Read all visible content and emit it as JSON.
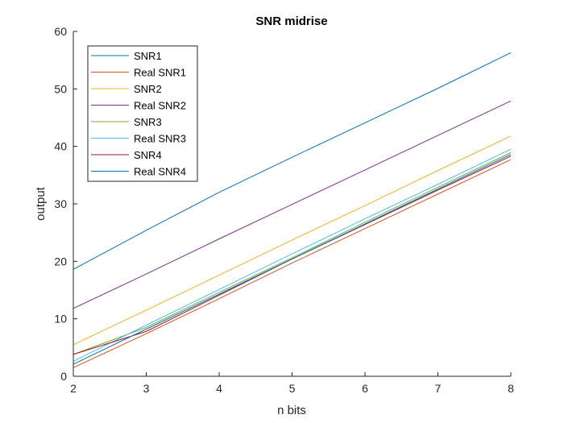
{
  "chart_data": {
    "type": "line",
    "title": "SNR midrise",
    "xlabel": "n bits",
    "ylabel": "output",
    "xlim": [
      2,
      8
    ],
    "ylim": [
      0,
      60
    ],
    "xticks": [
      "2",
      "3",
      "4",
      "5",
      "6",
      "7",
      "8"
    ],
    "yticks": [
      "0",
      "10",
      "20",
      "30",
      "40",
      "50",
      "60"
    ],
    "grid": false,
    "legend_placement": "top-left",
    "x": [
      2,
      3,
      4,
      5,
      6,
      7,
      8
    ],
    "series": [
      {
        "name": "SNR1",
        "color": "#0072BD",
        "values": [
          18.6,
          25.4,
          32.0,
          38.1,
          44.1,
          50.1,
          56.3
        ]
      },
      {
        "name": "Real SNR1",
        "color": "#D95319",
        "values": [
          1.5,
          7.4,
          13.5,
          19.7,
          25.7,
          31.7,
          37.7
        ]
      },
      {
        "name": "SNR2",
        "color": "#EDB120",
        "values": [
          5.5,
          11.5,
          17.6,
          23.7,
          29.7,
          35.8,
          41.8
        ]
      },
      {
        "name": "Real SNR2",
        "color": "#7E2F8E",
        "values": [
          11.8,
          17.8,
          23.9,
          29.9,
          35.9,
          41.9,
          47.9
        ]
      },
      {
        "name": "SNR3",
        "color": "#77AC30",
        "values": [
          3.8,
          8.5,
          14.6,
          20.6,
          26.8,
          32.9,
          38.9
        ]
      },
      {
        "name": "Real SNR3",
        "color": "#4DBEEE",
        "values": [
          2.6,
          8.9,
          15.1,
          21.3,
          27.4,
          33.4,
          39.5
        ]
      },
      {
        "name": "SNR4",
        "color": "#A2142F",
        "values": [
          3.8,
          7.8,
          14.1,
          20.4,
          26.4,
          32.4,
          38.3
        ]
      },
      {
        "name": "Real SNR4",
        "color": "#0072BD",
        "values": [
          2.1,
          8.2,
          14.3,
          20.4,
          26.5,
          32.6,
          38.6
        ]
      }
    ]
  }
}
